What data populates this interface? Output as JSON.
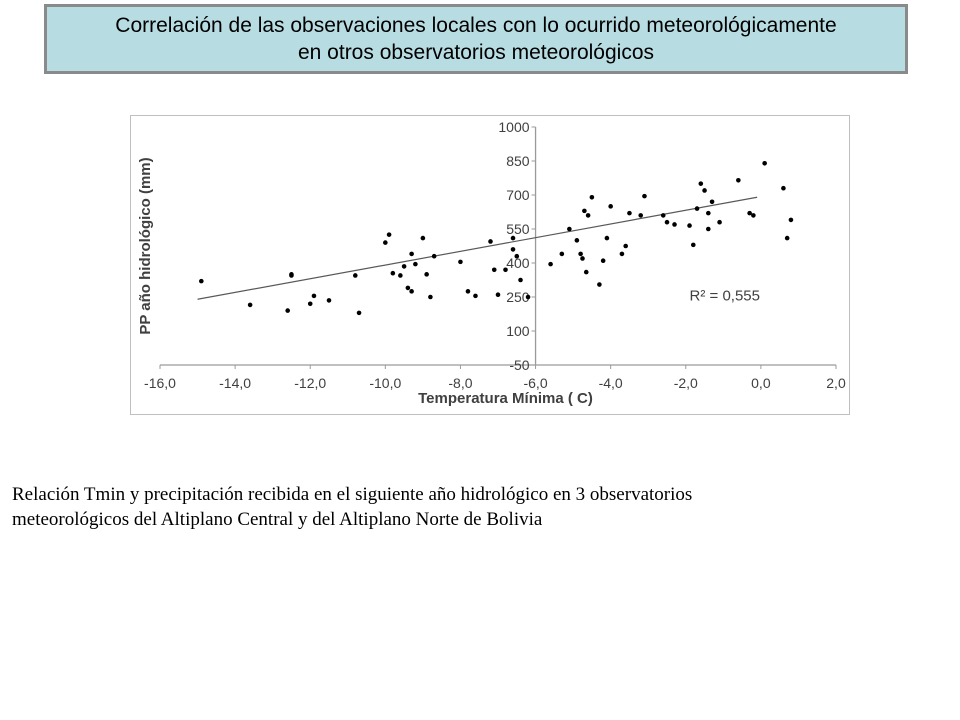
{
  "title": {
    "line1": "Correlación de las observaciones locales con lo ocurrido meteorológicamente",
    "line2": "en otros observatorios meteorológicos"
  },
  "caption": {
    "line1": "Relación Tmin y precipitación recibida en el siguiente año hidrológico en 3 observatorios",
    "line2": "meteorológicos del Altiplano Central y del Altiplano Norte de Bolivia"
  },
  "colors": {
    "title_bg": "#b7dde3",
    "title_border": "#8a8a8a",
    "points": "#000000",
    "trendline": "#595959",
    "plot_border": "#bfbfbf"
  },
  "chart_data": {
    "type": "scatter",
    "xlabel": "Temperatura Mínima ( C)",
    "ylabel": "PP año hidrológico (mm)",
    "xlim": [
      -16,
      2
    ],
    "ylim": [
      -50,
      1000
    ],
    "x_ticks": [
      "-16,0",
      "-14,0",
      "-12,0",
      "-10,0",
      "-8,0",
      "-6,0",
      "-4,0",
      "-2,0",
      "0,0",
      "2,0"
    ],
    "y_ticks": [
      "-50",
      "100",
      "250",
      "400",
      "550",
      "700",
      "850",
      "1000"
    ],
    "r2_label": "R² = 0,555",
    "trendline": {
      "x": [
        -15.0,
        -0.1
      ],
      "y": [
        240,
        690
      ]
    },
    "points": [
      [
        -14.9,
        320
      ],
      [
        -13.6,
        215
      ],
      [
        -12.6,
        190
      ],
      [
        -12.5,
        345
      ],
      [
        -12.5,
        350
      ],
      [
        -12.0,
        220
      ],
      [
        -11.9,
        255
      ],
      [
        -11.5,
        235
      ],
      [
        -10.8,
        345
      ],
      [
        -10.7,
        180
      ],
      [
        -10.0,
        490
      ],
      [
        -9.9,
        525
      ],
      [
        -9.8,
        355
      ],
      [
        -9.6,
        345
      ],
      [
        -9.5,
        385
      ],
      [
        -9.4,
        290
      ],
      [
        -9.3,
        440
      ],
      [
        -9.3,
        275
      ],
      [
        -9.2,
        395
      ],
      [
        -9.0,
        510
      ],
      [
        -8.9,
        350
      ],
      [
        -8.8,
        250
      ],
      [
        -8.7,
        430
      ],
      [
        -8.0,
        405
      ],
      [
        -7.8,
        275
      ],
      [
        -7.6,
        255
      ],
      [
        -7.2,
        495
      ],
      [
        -7.1,
        370
      ],
      [
        -7.0,
        260
      ],
      [
        -6.8,
        370
      ],
      [
        -6.6,
        510
      ],
      [
        -6.6,
        460
      ],
      [
        -6.5,
        430
      ],
      [
        -6.4,
        325
      ],
      [
        -6.2,
        250
      ],
      [
        -5.6,
        395
      ],
      [
        -5.3,
        440
      ],
      [
        -5.1,
        550
      ],
      [
        -4.9,
        500
      ],
      [
        -4.8,
        440
      ],
      [
        -4.75,
        420
      ],
      [
        -4.7,
        630
      ],
      [
        -4.65,
        360
      ],
      [
        -4.6,
        610
      ],
      [
        -4.5,
        690
      ],
      [
        -4.3,
        305
      ],
      [
        -4.2,
        410
      ],
      [
        -4.1,
        510
      ],
      [
        -4.0,
        650
      ],
      [
        -3.7,
        440
      ],
      [
        -3.6,
        475
      ],
      [
        -3.5,
        620
      ],
      [
        -3.2,
        610
      ],
      [
        -3.1,
        695
      ],
      [
        -2.6,
        610
      ],
      [
        -2.5,
        580
      ],
      [
        -2.3,
        570
      ],
      [
        -1.9,
        565
      ],
      [
        -1.8,
        480
      ],
      [
        -1.7,
        640
      ],
      [
        -1.6,
        750
      ],
      [
        -1.5,
        720
      ],
      [
        -1.4,
        550
      ],
      [
        -1.4,
        620
      ],
      [
        -1.3,
        670
      ],
      [
        -1.1,
        580
      ],
      [
        -0.6,
        765
      ],
      [
        -0.3,
        620
      ],
      [
        -0.2,
        610
      ],
      [
        0.1,
        840
      ],
      [
        0.6,
        730
      ],
      [
        0.7,
        510
      ],
      [
        0.8,
        590
      ]
    ]
  }
}
